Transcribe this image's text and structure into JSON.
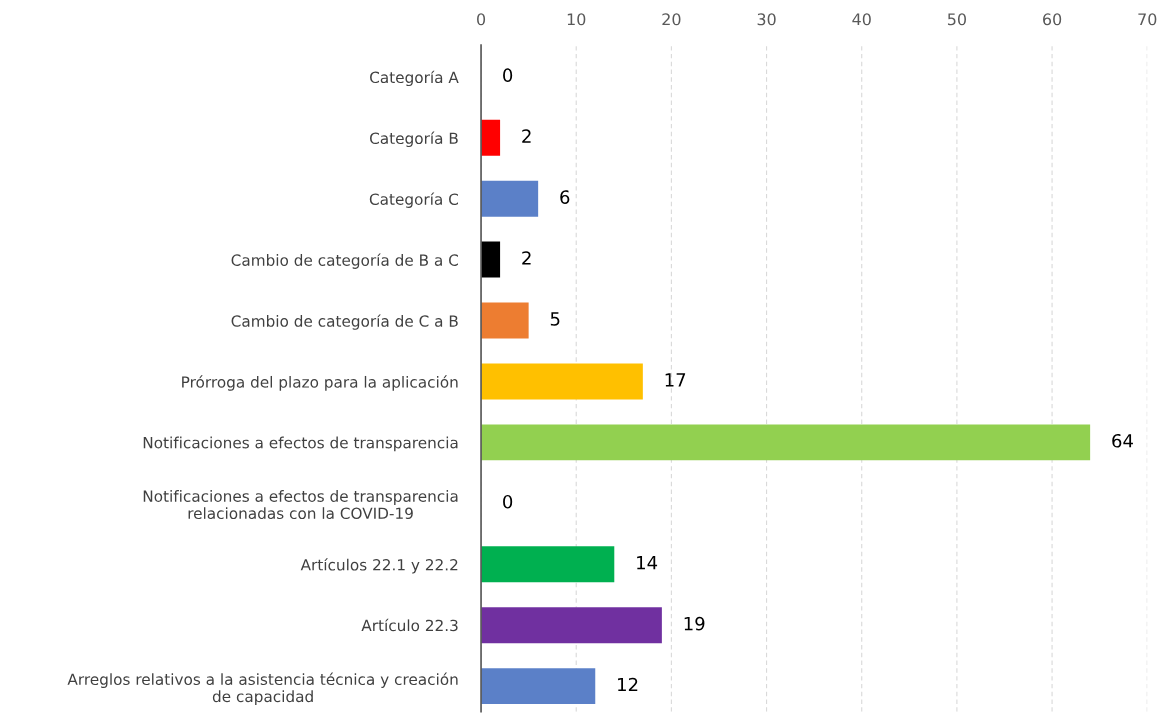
{
  "chart_data": {
    "type": "bar",
    "orientation": "horizontal",
    "categories": [
      "Categoría A",
      "Categoría B",
      "Categoría C",
      "Cambio de categoría de B a C",
      "Cambio de categoría de C a B",
      "Prórroga del plazo para la aplicación",
      "Notificaciones a efectos de transparencia",
      "Notificaciones a efectos de transparencia\nrelacionadas con la COVID-19",
      "Artículos 22.1 y 22.2",
      "Artículo 22.3",
      "Arreglos relativos a la asistencia técnica y creación\nde capacidad"
    ],
    "values": [
      0,
      2,
      6,
      2,
      5,
      17,
      64,
      0,
      14,
      19,
      12
    ],
    "colors": [
      "#5b80c8",
      "#ff0000",
      "#5b80c8",
      "#000000",
      "#ed7d31",
      "#ffc000",
      "#92d050",
      "#92d050",
      "#00b050",
      "#7030a0",
      "#5b80c8"
    ],
    "xlim": [
      0,
      70
    ],
    "xticks": [
      0,
      10,
      20,
      30,
      40,
      50,
      60,
      70
    ],
    "grid": "x",
    "data_labels": true,
    "legend": false
  }
}
